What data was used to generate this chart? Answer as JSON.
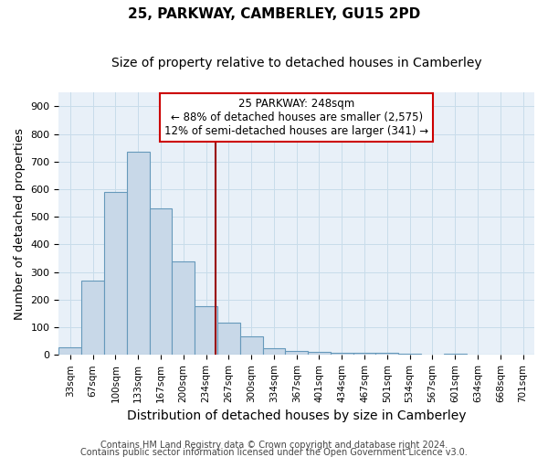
{
  "title": "25, PARKWAY, CAMBERLEY, GU15 2PD",
  "subtitle": "Size of property relative to detached houses in Camberley",
  "xlabel": "Distribution of detached houses by size in Camberley",
  "ylabel": "Number of detached properties",
  "footnote1": "Contains HM Land Registry data © Crown copyright and database right 2024.",
  "footnote2": "Contains public sector information licensed under the Open Government Licence v3.0.",
  "bar_labels": [
    "33sqm",
    "67sqm",
    "100sqm",
    "133sqm",
    "167sqm",
    "200sqm",
    "234sqm",
    "267sqm",
    "300sqm",
    "334sqm",
    "367sqm",
    "401sqm",
    "434sqm",
    "467sqm",
    "501sqm",
    "534sqm",
    "567sqm",
    "601sqm",
    "634sqm",
    "668sqm",
    "701sqm"
  ],
  "bar_values": [
    27,
    270,
    590,
    735,
    530,
    340,
    175,
    117,
    67,
    25,
    13,
    12,
    8,
    7,
    7,
    5,
    0,
    5,
    0,
    0,
    0
  ],
  "bar_color": "#c8d8e8",
  "bar_edge_color": "#6699bb",
  "bar_edge_width": 0.8,
  "annotation_title": "25 PARKWAY: 248sqm",
  "annotation_line1": "← 88% of detached houses are smaller (2,575)",
  "annotation_line2": "12% of semi-detached houses are larger (341) →",
  "annotation_box_color": "#ffffff",
  "annotation_box_edge": "#cc0000",
  "red_line_color": "#990000",
  "ylim": [
    0,
    950
  ],
  "yticks": [
    0,
    100,
    200,
    300,
    400,
    500,
    600,
    700,
    800,
    900
  ],
  "grid_color": "#c8dcea",
  "bg_color": "#e8f0f8",
  "title_fontsize": 11,
  "subtitle_fontsize": 10,
  "axis_label_fontsize": 9.5,
  "tick_fontsize": 7.5,
  "annot_fontsize": 8.5,
  "footnote_fontsize": 7.0
}
